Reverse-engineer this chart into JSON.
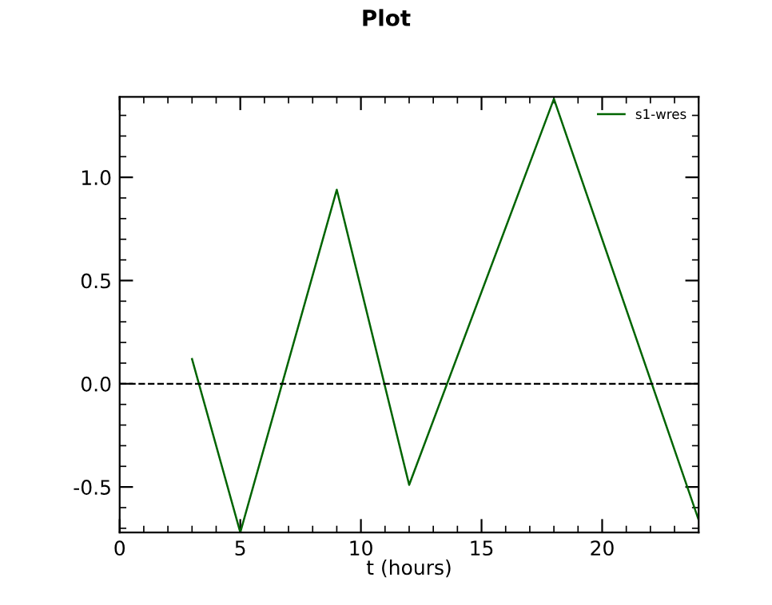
{
  "chart_data": {
    "type": "line",
    "title": "Plot",
    "xlabel": "t (hours)",
    "x": [
      3,
      5,
      9,
      12,
      18,
      24
    ],
    "series": [
      {
        "name": "s1-wres",
        "color": "#006400",
        "values": [
          0.12,
          -0.72,
          0.94,
          -0.49,
          1.38,
          -0.66
        ]
      }
    ],
    "xlim": [
      0,
      24
    ],
    "xticks": [
      0,
      5,
      10,
      15,
      20
    ],
    "ylim": [
      -0.72,
      1.39
    ],
    "yticks": [
      {
        "value": -0.5,
        "label": "-0.5"
      },
      {
        "value": 0,
        "label": "0.0"
      },
      {
        "value": 0.5,
        "label": "0.5"
      },
      {
        "value": 1.0,
        "label": "1.0"
      }
    ],
    "ref_lines": [
      {
        "axis": "y",
        "value": 0,
        "color": "#000000",
        "line_style": "dashed"
      }
    ],
    "legend": "top right",
    "grid": false,
    "marker": "none",
    "line_style": "solid"
  }
}
